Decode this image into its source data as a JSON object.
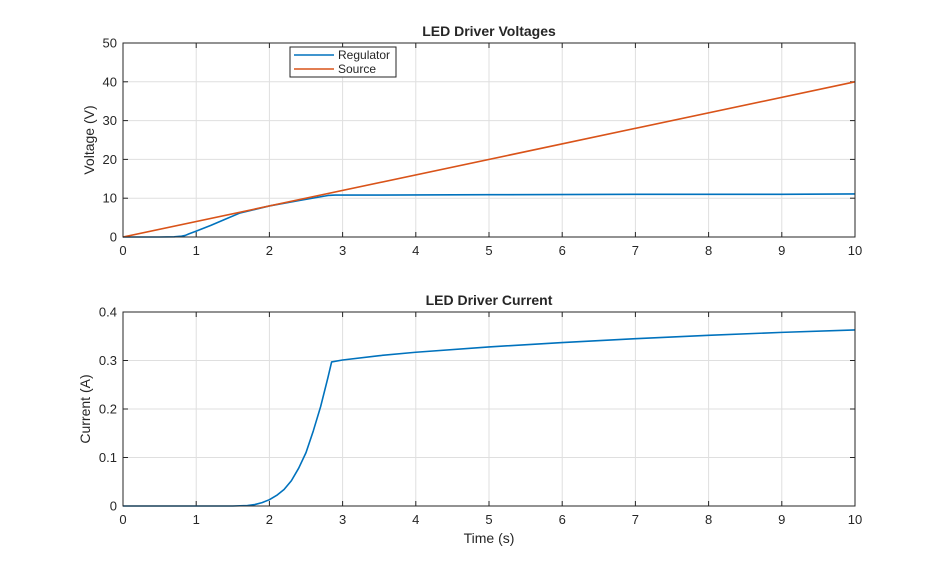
{
  "chart_data": [
    {
      "type": "line",
      "title": "LED Driver Voltages",
      "xlabel": "",
      "ylabel": "Voltage (V)",
      "xlim": [
        0,
        10
      ],
      "ylim": [
        0,
        50
      ],
      "xticks": [
        "0",
        "1",
        "2",
        "3",
        "4",
        "5",
        "6",
        "7",
        "8",
        "9",
        "10"
      ],
      "yticks": [
        "0",
        "10",
        "20",
        "30",
        "40",
        "50"
      ],
      "grid": true,
      "legend_position": "top-left",
      "series": [
        {
          "name": "Regulator",
          "color": "#0072BD",
          "x": [
            0,
            0.5,
            0.7,
            0.8,
            0.85,
            0.9,
            1.0,
            1.2,
            1.4,
            1.6,
            2.0,
            2.4,
            2.8,
            2.9,
            3.5,
            5,
            7,
            9,
            10
          ],
          "y": [
            0,
            0,
            0.05,
            0.2,
            0.4,
            0.8,
            1.5,
            3.0,
            4.6,
            6.2,
            8.0,
            9.4,
            10.7,
            10.8,
            10.8,
            10.9,
            11.0,
            11.0,
            11.1
          ]
        },
        {
          "name": "Source",
          "color": "#D95319",
          "x": [
            0,
            10
          ],
          "y": [
            0,
            40
          ]
        }
      ]
    },
    {
      "type": "line",
      "title": "LED Driver Current",
      "xlabel": "Time (s)",
      "ylabel": "Current (A)",
      "xlim": [
        0,
        10
      ],
      "ylim": [
        0,
        0.4
      ],
      "xticks": [
        "0",
        "1",
        "2",
        "3",
        "4",
        "5",
        "6",
        "7",
        "8",
        "9",
        "10"
      ],
      "yticks": [
        "0",
        "0.1",
        "0.2",
        "0.3",
        "0.4"
      ],
      "grid": true,
      "series": [
        {
          "color": "#0072BD",
          "x": [
            0,
            1.5,
            1.7,
            1.8,
            1.9,
            2.0,
            2.1,
            2.2,
            2.3,
            2.4,
            2.5,
            2.6,
            2.7,
            2.8,
            2.85,
            3.0,
            3.5,
            4,
            5,
            6,
            7,
            8,
            9,
            10
          ],
          "y": [
            0,
            0,
            0.001,
            0.003,
            0.007,
            0.013,
            0.022,
            0.034,
            0.052,
            0.078,
            0.11,
            0.155,
            0.205,
            0.265,
            0.297,
            0.301,
            0.31,
            0.317,
            0.328,
            0.337,
            0.345,
            0.352,
            0.358,
            0.363
          ]
        }
      ]
    }
  ]
}
